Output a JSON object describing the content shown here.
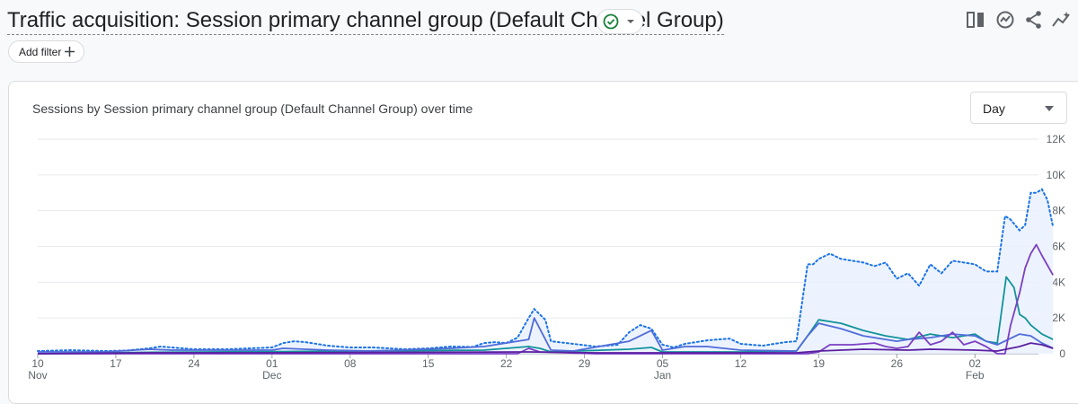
{
  "header": {
    "title": "Traffic acquisition: Session primary channel group (Default Channel Group)",
    "add_filter_label": "Add filter",
    "icons": [
      "compare-icon",
      "insights-icon",
      "share-icon",
      "trend-icon"
    ]
  },
  "card": {
    "chart_title": "Sessions by Session primary channel group (Default Channel Group) over time",
    "granularity": "Day"
  },
  "colors": {
    "total": "#1a73e8",
    "total_fill": "#e8f0fe",
    "series1": "#12939a",
    "series2": "#4f6cd9",
    "series3": "#7b3fc4",
    "series4": "#5a1fa0",
    "check": "#188038"
  },
  "chart_data": {
    "type": "line",
    "y_ticks": [
      "12K",
      "10K",
      "8K",
      "6K",
      "4K",
      "2K",
      "0"
    ],
    "ylim": [
      0,
      12000
    ],
    "x_ticks": [
      {
        "day": 0,
        "label": "10",
        "month": "Nov"
      },
      {
        "day": 7,
        "label": "17"
      },
      {
        "day": 14,
        "label": "24"
      },
      {
        "day": 21,
        "label": "01",
        "month": "Dec"
      },
      {
        "day": 28,
        "label": "08"
      },
      {
        "day": 35,
        "label": "15"
      },
      {
        "day": 42,
        "label": "22"
      },
      {
        "day": 49,
        "label": "29"
      },
      {
        "day": 56,
        "label": "05",
        "month": "Jan"
      },
      {
        "day": 63,
        "label": "12"
      },
      {
        "day": 70,
        "label": "19"
      },
      {
        "day": 77,
        "label": "26"
      },
      {
        "day": 84,
        "label": "02",
        "month": "Feb"
      }
    ],
    "x_range": [
      0,
      88
    ],
    "grid": true,
    "series": [
      {
        "style": "dotted-area",
        "points": [
          [
            0,
            150
          ],
          [
            3,
            200
          ],
          [
            6,
            150
          ],
          [
            8,
            180
          ],
          [
            10,
            300
          ],
          [
            11,
            400
          ],
          [
            12,
            350
          ],
          [
            14,
            250
          ],
          [
            17,
            250
          ],
          [
            19,
            300
          ],
          [
            21,
            350
          ],
          [
            22,
            600
          ],
          [
            23,
            700
          ],
          [
            24,
            650
          ],
          [
            26,
            450
          ],
          [
            28,
            350
          ],
          [
            30,
            350
          ],
          [
            33,
            250
          ],
          [
            35,
            300
          ],
          [
            37,
            400
          ],
          [
            39,
            380
          ],
          [
            40,
            600
          ],
          [
            41,
            650
          ],
          [
            42,
            600
          ],
          [
            43,
            900
          ],
          [
            44,
            2000
          ],
          [
            44.5,
            2500
          ],
          [
            45.5,
            1900
          ],
          [
            46,
            700
          ],
          [
            48,
            550
          ],
          [
            50,
            400
          ],
          [
            52,
            500
          ],
          [
            53,
            1200
          ],
          [
            54,
            1600
          ],
          [
            55,
            1400
          ],
          [
            56,
            500
          ],
          [
            57,
            350
          ],
          [
            58,
            550
          ],
          [
            60,
            750
          ],
          [
            62,
            850
          ],
          [
            63,
            550
          ],
          [
            64,
            500
          ],
          [
            65,
            450
          ],
          [
            66,
            550
          ],
          [
            67,
            650
          ],
          [
            68,
            700
          ],
          [
            69,
            5000
          ],
          [
            69.5,
            5000
          ],
          [
            70,
            5300
          ],
          [
            71,
            5600
          ],
          [
            72,
            5300
          ],
          [
            74,
            5100
          ],
          [
            75,
            4900
          ],
          [
            76,
            5100
          ],
          [
            77,
            4200
          ],
          [
            78,
            4500
          ],
          [
            79,
            3800
          ],
          [
            80,
            5000
          ],
          [
            81,
            4500
          ],
          [
            82,
            5200
          ],
          [
            84,
            5000
          ],
          [
            85,
            4600
          ],
          [
            86,
            4600
          ],
          [
            86.7,
            7700
          ],
          [
            87.2,
            7500
          ],
          [
            88,
            6900
          ],
          [
            88.5,
            7200
          ],
          [
            89,
            9000
          ],
          [
            89.5,
            9000
          ],
          [
            90,
            9200
          ],
          [
            90.5,
            8600
          ],
          [
            91,
            7100
          ]
        ]
      },
      {
        "style": "solid",
        "points": [
          [
            0,
            0
          ],
          [
            10,
            80
          ],
          [
            21,
            120
          ],
          [
            40,
            200
          ],
          [
            44,
            400
          ],
          [
            45,
            300
          ],
          [
            46,
            100
          ],
          [
            53,
            250
          ],
          [
            55,
            350
          ],
          [
            56,
            100
          ],
          [
            63,
            100
          ],
          [
            68,
            150
          ],
          [
            69,
            1000
          ],
          [
            70,
            1900
          ],
          [
            72,
            1700
          ],
          [
            74,
            1300
          ],
          [
            76,
            1000
          ],
          [
            78,
            800
          ],
          [
            80,
            1100
          ],
          [
            82,
            900
          ],
          [
            84,
            1100
          ],
          [
            85,
            700
          ],
          [
            86,
            600
          ],
          [
            86.8,
            4300
          ],
          [
            87.5,
            3700
          ],
          [
            88,
            2200
          ],
          [
            88.5,
            2000
          ],
          [
            89,
            1600
          ],
          [
            90,
            1100
          ],
          [
            91,
            800
          ]
        ]
      },
      {
        "style": "solid",
        "points": [
          [
            0,
            100
          ],
          [
            6,
            100
          ],
          [
            10,
            250
          ],
          [
            12,
            200
          ],
          [
            21,
            200
          ],
          [
            22,
            300
          ],
          [
            26,
            200
          ],
          [
            30,
            150
          ],
          [
            37,
            300
          ],
          [
            40,
            400
          ],
          [
            44,
            800
          ],
          [
            44.5,
            2000
          ],
          [
            45.5,
            800
          ],
          [
            46,
            200
          ],
          [
            48,
            150
          ],
          [
            53,
            700
          ],
          [
            55,
            1300
          ],
          [
            56,
            200
          ],
          [
            58,
            400
          ],
          [
            60,
            400
          ],
          [
            63,
            200
          ],
          [
            68,
            150
          ],
          [
            69,
            1000
          ],
          [
            70,
            1700
          ],
          [
            72,
            1400
          ],
          [
            74,
            1000
          ],
          [
            76,
            800
          ],
          [
            77,
            700
          ],
          [
            78,
            800
          ],
          [
            80,
            900
          ],
          [
            82,
            1100
          ],
          [
            84,
            1000
          ],
          [
            85,
            700
          ],
          [
            86,
            500
          ],
          [
            87,
            800
          ],
          [
            88,
            1100
          ],
          [
            89,
            1000
          ],
          [
            90,
            600
          ],
          [
            91,
            300
          ]
        ]
      },
      {
        "style": "solid",
        "points": [
          [
            0,
            0
          ],
          [
            20,
            0
          ],
          [
            43,
            0
          ],
          [
            44,
            300
          ],
          [
            45,
            100
          ],
          [
            50,
            0
          ],
          [
            68,
            0
          ],
          [
            69,
            0
          ],
          [
            70,
            100
          ],
          [
            71,
            500
          ],
          [
            73,
            500
          ],
          [
            75,
            600
          ],
          [
            76,
            400
          ],
          [
            77,
            300
          ],
          [
            78,
            400
          ],
          [
            79,
            1200
          ],
          [
            80,
            500
          ],
          [
            81,
            700
          ],
          [
            82,
            1200
          ],
          [
            83,
            500
          ],
          [
            84,
            700
          ],
          [
            85,
            400
          ],
          [
            86,
            0
          ],
          [
            86.7,
            0
          ],
          [
            87.2,
            1600
          ],
          [
            88,
            3400
          ],
          [
            88.5,
            4800
          ],
          [
            89,
            5600
          ],
          [
            89.5,
            6100
          ],
          [
            90,
            5500
          ],
          [
            91,
            4400
          ]
        ]
      },
      {
        "style": "solid",
        "points": [
          [
            0,
            0
          ],
          [
            10,
            50
          ],
          [
            20,
            50
          ],
          [
            44,
            100
          ],
          [
            50,
            50
          ],
          [
            60,
            50
          ],
          [
            68,
            50
          ],
          [
            70,
            150
          ],
          [
            74,
            250
          ],
          [
            78,
            200
          ],
          [
            80,
            250
          ],
          [
            84,
            200
          ],
          [
            86,
            150
          ],
          [
            88,
            400
          ],
          [
            89,
            600
          ],
          [
            90,
            500
          ],
          [
            91,
            300
          ]
        ]
      }
    ]
  }
}
